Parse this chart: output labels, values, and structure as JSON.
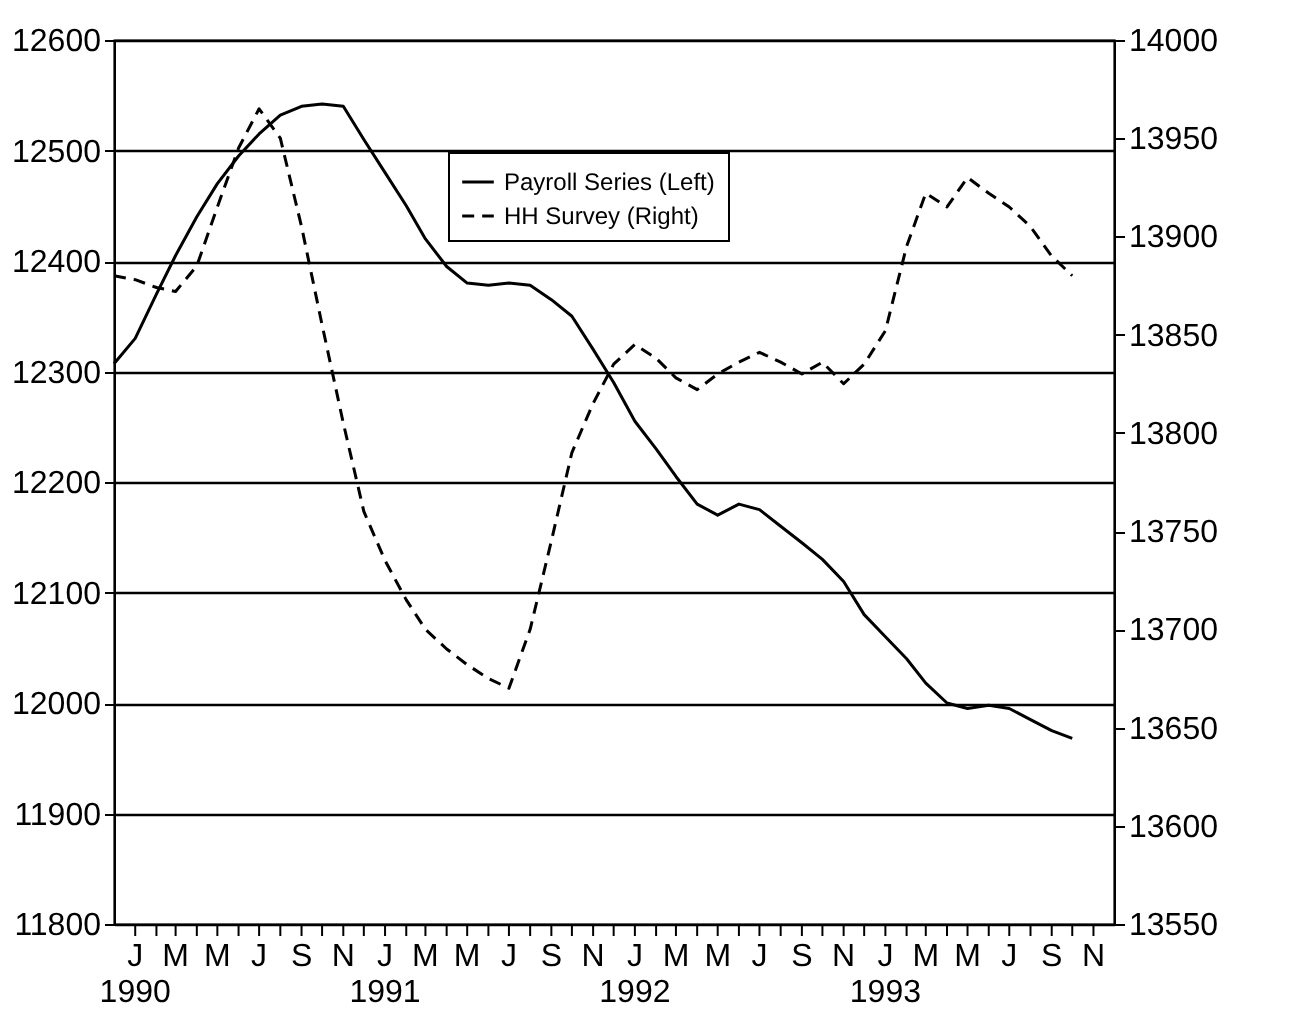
{
  "chart_data": {
    "type": "line",
    "x": [
      "1989-12",
      "1990-01",
      "1990-02",
      "1990-03",
      "1990-04",
      "1990-05",
      "1990-06",
      "1990-07",
      "1990-08",
      "1990-09",
      "1990-10",
      "1990-11",
      "1990-12",
      "1991-01",
      "1991-02",
      "1991-03",
      "1991-04",
      "1991-05",
      "1991-06",
      "1991-07",
      "1991-08",
      "1991-09",
      "1991-10",
      "1991-11",
      "1991-12",
      "1992-01",
      "1992-02",
      "1992-03",
      "1992-04",
      "1992-05",
      "1992-06",
      "1992-07",
      "1992-08",
      "1992-09",
      "1992-10",
      "1992-11",
      "1992-12",
      "1993-01",
      "1993-02",
      "1993-03",
      "1993-04",
      "1993-05",
      "1993-06",
      "1993-07",
      "1993-08",
      "1993-09",
      "1993-10"
    ],
    "series": [
      {
        "name": "Payroll Series (Left)",
        "color": "#000000",
        "line_style": "solid",
        "values": [
          12307,
          12330,
          12370,
          12405,
          12440,
          12470,
          12495,
          12515,
          12532,
          12540,
          12542,
          12540,
          12510,
          12480,
          12450,
          12420,
          12395,
          12380,
          12378,
          12380,
          12378,
          12365,
          12350,
          12320,
          12290,
          12255,
          12230,
          12205,
          12180,
          12170,
          12180,
          12175,
          12160,
          12145,
          12130,
          12110,
          12080,
          12060,
          12040,
          12018,
          12000,
          11995,
          11998,
          11995,
          11985,
          11975,
          11968
        ]
      },
      {
        "name": "HH Survey (Right)",
        "color": "#000000",
        "line_style": "dashed",
        "axis": "y2",
        "values": [
          13880,
          13878,
          13874,
          13872,
          13885,
          13915,
          13945,
          13965,
          13950,
          13905,
          13855,
          13805,
          13760,
          13735,
          13715,
          13700,
          13690,
          13682,
          13675,
          13670,
          13700,
          13745,
          13790,
          13815,
          13835,
          13845,
          13838,
          13828,
          13822,
          13830,
          13836,
          13841,
          13836,
          13830,
          13836,
          13825,
          13835,
          13852,
          13895,
          13922,
          13915,
          13930,
          13922,
          13915,
          13905,
          13890,
          13880
        ]
      }
    ],
    "xlim": [
      "1989-12",
      "1993-12"
    ],
    "xticks": [
      {
        "value": "1990-01",
        "label": "J\n1990"
      },
      {
        "value": "1990-02",
        "label": null
      },
      {
        "value": "1990-03",
        "label": "M"
      },
      {
        "value": "1990-04",
        "label": null
      },
      {
        "value": "1990-05",
        "label": "M"
      },
      {
        "value": "1990-06",
        "label": null
      },
      {
        "value": "1990-07",
        "label": "J"
      },
      {
        "value": "1990-08",
        "label": null
      },
      {
        "value": "1990-09",
        "label": "S"
      },
      {
        "value": "1990-10",
        "label": null
      },
      {
        "value": "1990-11",
        "label": "N"
      },
      {
        "value": "1990-12",
        "label": null
      },
      {
        "value": "1991-01",
        "label": "J\n1991"
      },
      {
        "value": "1991-02",
        "label": null
      },
      {
        "value": "1991-03",
        "label": "M"
      },
      {
        "value": "1991-04",
        "label": null
      },
      {
        "value": "1991-05",
        "label": "M"
      },
      {
        "value": "1991-06",
        "label": null
      },
      {
        "value": "1991-07",
        "label": "J"
      },
      {
        "value": "1991-08",
        "label": null
      },
      {
        "value": "1991-09",
        "label": "S"
      },
      {
        "value": "1991-10",
        "label": null
      },
      {
        "value": "1991-11",
        "label": "N"
      },
      {
        "value": "1991-12",
        "label": null
      },
      {
        "value": "1992-01",
        "label": "J\n1992"
      },
      {
        "value": "1992-02",
        "label": null
      },
      {
        "value": "1992-03",
        "label": "M"
      },
      {
        "value": "1992-04",
        "label": null
      },
      {
        "value": "1992-05",
        "label": "M"
      },
      {
        "value": "1992-06",
        "label": null
      },
      {
        "value": "1992-07",
        "label": "J"
      },
      {
        "value": "1992-08",
        "label": null
      },
      {
        "value": "1992-09",
        "label": "S"
      },
      {
        "value": "1992-10",
        "label": null
      },
      {
        "value": "1992-11",
        "label": "N"
      },
      {
        "value": "1992-12",
        "label": null
      },
      {
        "value": "1993-01",
        "label": "J\n1993"
      },
      {
        "value": "1993-02",
        "label": null
      },
      {
        "value": "1993-03",
        "label": "M"
      },
      {
        "value": "1993-04",
        "label": null
      },
      {
        "value": "1993-05",
        "label": "M"
      },
      {
        "value": "1993-06",
        "label": null
      },
      {
        "value": "1993-07",
        "label": "J"
      },
      {
        "value": "1993-08",
        "label": null
      },
      {
        "value": "1993-09",
        "label": "S"
      },
      {
        "value": "1993-10",
        "label": null
      },
      {
        "value": "1993-11",
        "label": "N"
      }
    ],
    "ylim": [
      11800,
      12600
    ],
    "yticks": [
      11800,
      11900,
      12000,
      12100,
      12200,
      12300,
      12400,
      12500,
      12600
    ],
    "y2lim": [
      13550,
      14000
    ],
    "y2ticks": [
      13550,
      13600,
      13650,
      13700,
      13750,
      13800,
      13850,
      13900,
      13950,
      14000
    ],
    "grid": "y",
    "legend": "top right"
  }
}
